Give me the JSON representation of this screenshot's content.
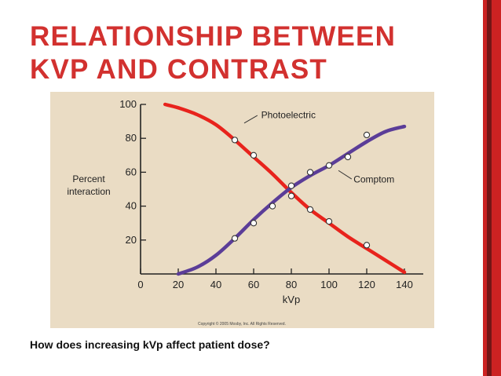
{
  "slide": {
    "title_line1": "RELATIONSHIP BETWEEN",
    "title_line2": "KVP AND CONTRAST",
    "question": "How does increasing kVp affect patient dose?",
    "accent_color": "#d2312f",
    "bar_color": "#cc2222"
  },
  "chart_data": {
    "type": "line",
    "ylabel": "Percent interaction",
    "ylabel_lines": [
      "Percent",
      "interaction"
    ],
    "xlabel": "kVp",
    "xlim": [
      0,
      150
    ],
    "ylim": [
      0,
      100
    ],
    "x_ticks": [
      0,
      20,
      40,
      60,
      80,
      100,
      120,
      140
    ],
    "x_tick_labels": [
      "0",
      "20",
      "40",
      "60",
      "80",
      "100",
      "120",
      "140"
    ],
    "y_ticks": [
      20,
      40,
      60,
      80,
      100
    ],
    "y_tick_labels": [
      "20",
      "40",
      "60",
      "80",
      "100"
    ],
    "copyright": "Copyright © 2005 Mosby, Inc. All Rights Reserved.",
    "series": [
      {
        "name": "Photoelectric",
        "color": "#e8231c",
        "curve": [
          [
            13,
            100
          ],
          [
            20,
            98
          ],
          [
            30,
            94
          ],
          [
            40,
            88
          ],
          [
            50,
            79
          ],
          [
            60,
            69
          ],
          [
            70,
            59
          ],
          [
            80,
            48
          ],
          [
            90,
            38
          ],
          [
            100,
            30
          ],
          [
            110,
            22
          ],
          [
            120,
            15
          ],
          [
            130,
            8
          ],
          [
            140,
            1
          ]
        ],
        "points": [
          [
            50,
            79
          ],
          [
            60,
            70
          ],
          [
            80,
            46
          ],
          [
            90,
            38
          ],
          [
            100,
            31
          ],
          [
            120,
            17
          ]
        ]
      },
      {
        "name": "Comptom",
        "color": "#5b3d98",
        "curve": [
          [
            20,
            0
          ],
          [
            30,
            4
          ],
          [
            40,
            11
          ],
          [
            50,
            21
          ],
          [
            60,
            32
          ],
          [
            70,
            42
          ],
          [
            80,
            51
          ],
          [
            90,
            58
          ],
          [
            100,
            64
          ],
          [
            110,
            71
          ],
          [
            120,
            78
          ],
          [
            130,
            84
          ],
          [
            140,
            87
          ]
        ],
        "points": [
          [
            50,
            21
          ],
          [
            60,
            30
          ],
          [
            70,
            40
          ],
          [
            80,
            52
          ],
          [
            90,
            60
          ],
          [
            100,
            64
          ],
          [
            110,
            69
          ],
          [
            120,
            82
          ]
        ]
      }
    ]
  }
}
